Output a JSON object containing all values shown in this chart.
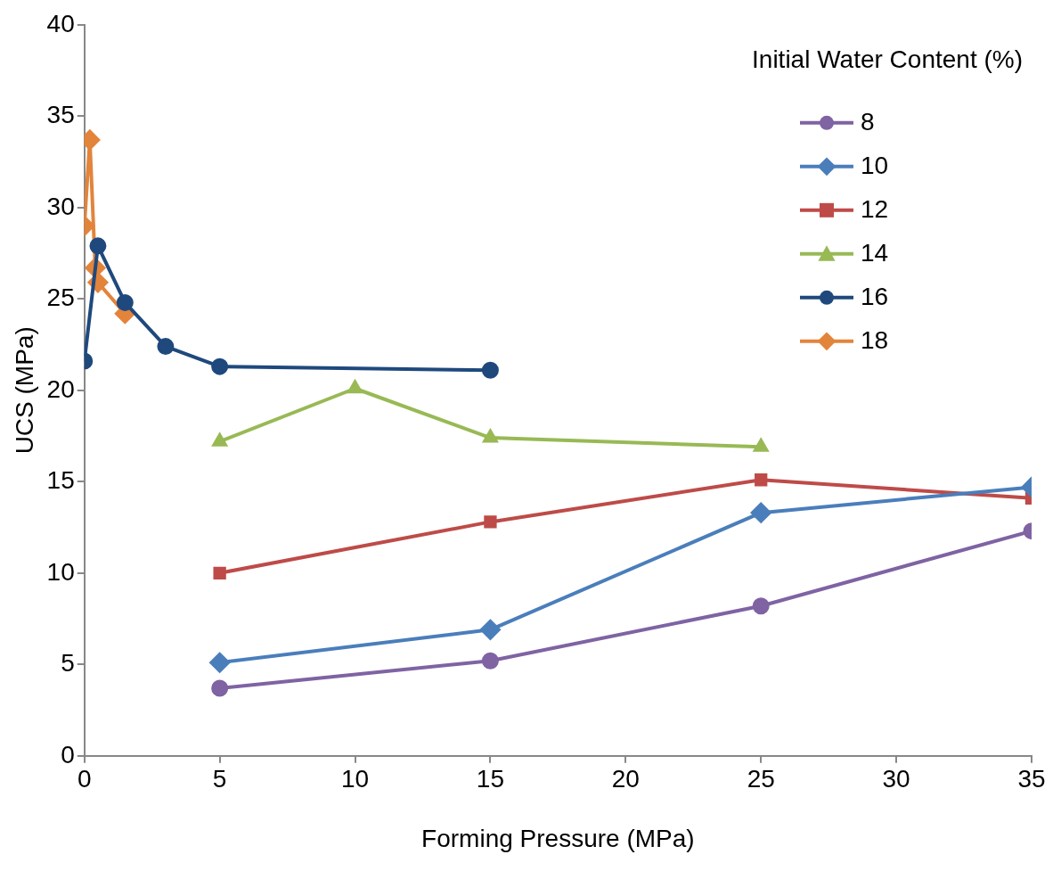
{
  "chart_data": {
    "type": "line",
    "xlabel": "Forming Pressure (MPa)",
    "ylabel": "UCS (MPa)",
    "legend_title": "Initial Water Content (%)",
    "xlim": [
      0,
      35
    ],
    "xticks": [
      0,
      5,
      10,
      15,
      20,
      25,
      30,
      35
    ],
    "ylim": [
      0,
      40
    ],
    "yticks": [
      0,
      5,
      10,
      15,
      20,
      25,
      30,
      35,
      40
    ],
    "grid": false,
    "legend": "top right",
    "line_style": "solid",
    "series": [
      {
        "name": "8",
        "color": "#7f63a3",
        "marker": "circle",
        "x": [
          5,
          15,
          25,
          35
        ],
        "values": [
          3.7,
          5.2,
          8.2,
          12.3
        ]
      },
      {
        "name": "10",
        "color": "#4a7ebb",
        "marker": "diamond",
        "x": [
          5,
          15,
          25,
          35
        ],
        "values": [
          5.1,
          6.9,
          13.3,
          14.7
        ]
      },
      {
        "name": "12",
        "color": "#be4b48",
        "marker": "square",
        "x": [
          5,
          15,
          25,
          35
        ],
        "values": [
          10,
          12.8,
          15.1,
          14.1
        ]
      },
      {
        "name": "14",
        "color": "#98b954",
        "marker": "triangle",
        "x": [
          5,
          10,
          15,
          25
        ],
        "values": [
          17.2,
          20.1,
          17.4,
          16.9
        ]
      },
      {
        "name": "16",
        "color": "#1f497d",
        "marker": "circle",
        "x": [
          0,
          0.5,
          1.5,
          3,
          5,
          15
        ],
        "values": [
          21.6,
          27.9,
          24.8,
          22.4,
          21.3,
          21.1
        ]
      },
      {
        "name": "18",
        "color": "#e3843b",
        "marker": "diamond",
        "x": [
          0,
          0.2,
          0.4,
          0.5,
          1.5
        ],
        "values": [
          29,
          33.7,
          26.7,
          25.9,
          24.2
        ]
      }
    ]
  }
}
